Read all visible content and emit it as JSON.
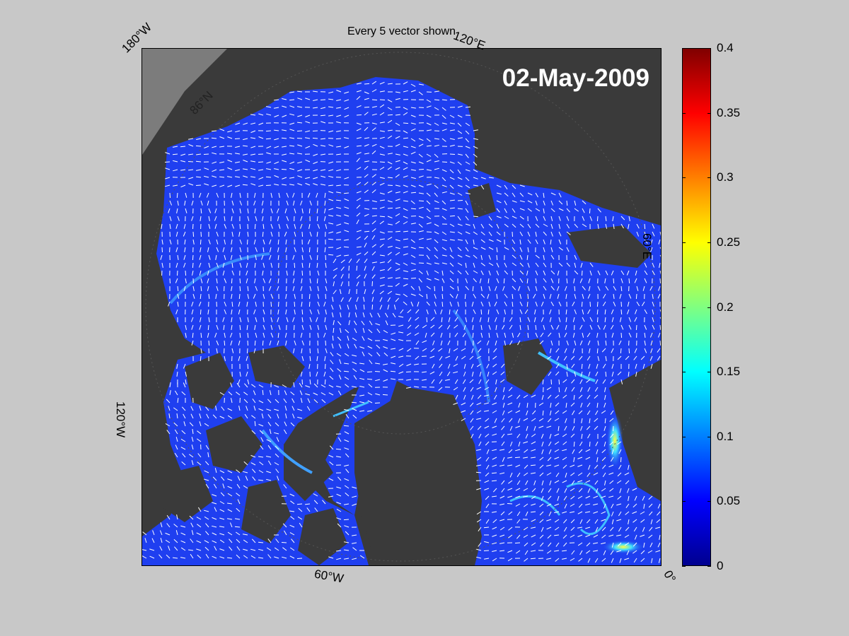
{
  "figure": {
    "title": "Every 5 vector shown",
    "date_label": "02-May-2009"
  },
  "map": {
    "projection": "polar-stereographic",
    "ocean_color": "#1f3ff0",
    "land_color": "#3a3a3a",
    "outside_color": "#808080",
    "vector_color": "#ffffff",
    "coord_labels": {
      "top_left": "180°W",
      "top_right": "120°E",
      "right": "60°E",
      "left": "120°W",
      "bottom": "60°W",
      "bottom_right": "0°",
      "lat": "86°N"
    }
  },
  "colorbar": {
    "ticks": [
      "0",
      "0.05",
      "0.1",
      "0.15",
      "0.2",
      "0.25",
      "0.3",
      "0.35",
      "0.4"
    ],
    "min": 0,
    "max": 0.4,
    "colormap": "jet"
  }
}
